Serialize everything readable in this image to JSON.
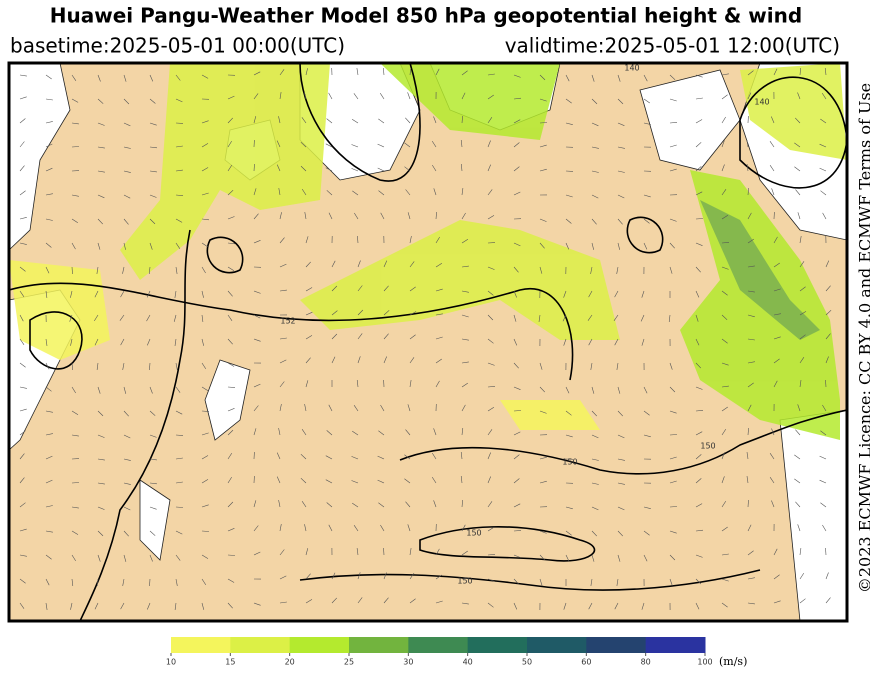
{
  "header": {
    "title": "Huawei Pangu-Weather Model 850 hPa geopotential height & wind",
    "basetime": "basetime:2025-05-01 00:00(UTC)",
    "validtime": "validtime:2025-05-01 12:00(UTC)"
  },
  "map": {
    "contour_labels": [
      "140",
      "140",
      "152",
      "150",
      "150",
      "150",
      "150"
    ]
  },
  "side_text": "©2023 ECMWF Licence: CC BY 4.0 and ECMWF Terms of Use",
  "colorbar": {
    "ticks": [
      10,
      15,
      20,
      25,
      30,
      40,
      50,
      60,
      80,
      100
    ],
    "colors": [
      "#f4f55c",
      "#dcf046",
      "#b4ea2e",
      "#72b43e",
      "#3e8a52",
      "#226e5c",
      "#1f5a66",
      "#24436f",
      "#2a33a0"
    ],
    "unit": "(m/s)"
  }
}
